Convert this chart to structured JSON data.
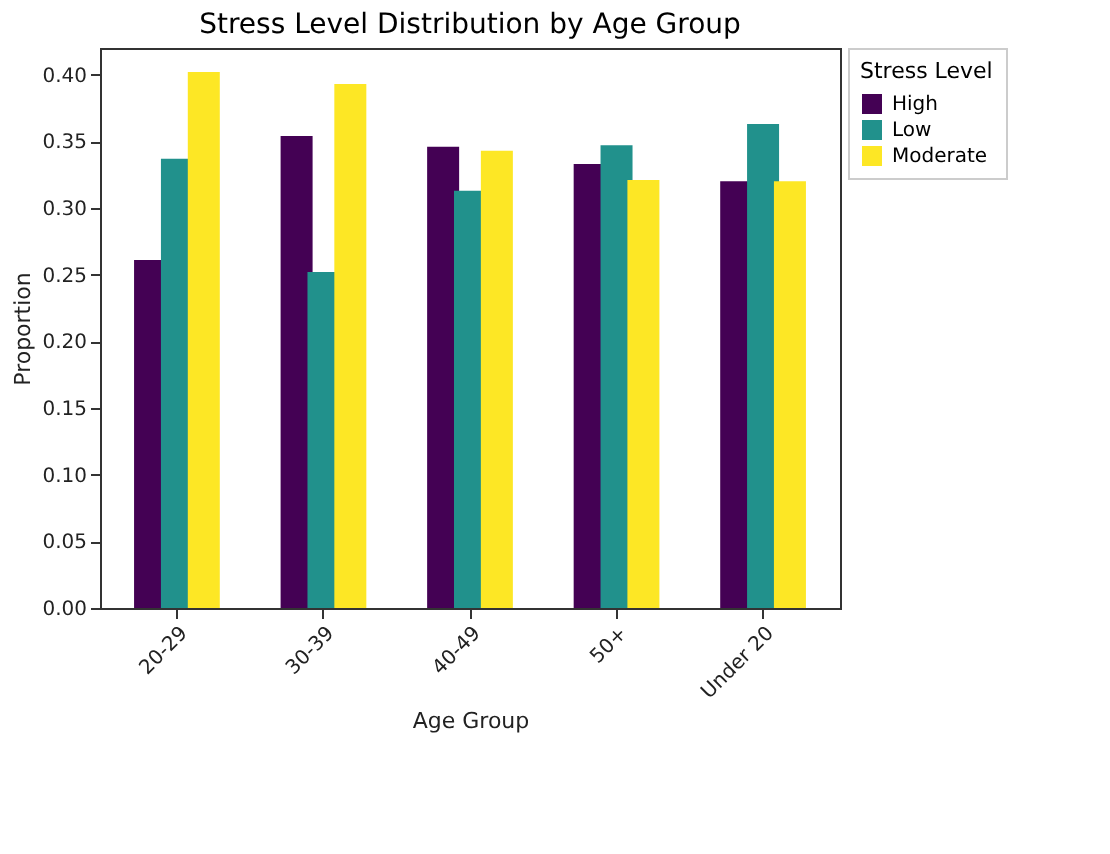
{
  "chart_data": {
    "type": "bar",
    "title": "Stress Level Distribution by Age Group",
    "xlabel": "Age Group",
    "ylabel": "Proportion",
    "legend_title": "Stress Level",
    "categories": [
      "20-29",
      "30-39",
      "40-49",
      "50+",
      "Under 20"
    ],
    "series": [
      {
        "name": "High",
        "color": "#440154",
        "values": [
          0.261,
          0.354,
          0.346,
          0.333,
          0.32
        ]
      },
      {
        "name": "Low",
        "color": "#21918c",
        "values": [
          0.337,
          0.252,
          0.313,
          0.347,
          0.363
        ]
      },
      {
        "name": "Moderate",
        "color": "#fde725",
        "values": [
          0.402,
          0.393,
          0.343,
          0.321,
          0.32
        ]
      }
    ],
    "ylim": [
      0,
      0.42
    ],
    "yticks": [
      {
        "value": 0,
        "label": "0.00"
      },
      {
        "value": 0.05,
        "label": "0.05"
      },
      {
        "value": 0.1,
        "label": "0.10"
      },
      {
        "value": 0.15,
        "label": "0.15"
      },
      {
        "value": 0.2,
        "label": "0.20"
      },
      {
        "value": 0.25,
        "label": "0.25"
      },
      {
        "value": 0.3,
        "label": "0.30"
      },
      {
        "value": 0.35,
        "label": "0.35"
      },
      {
        "value": 0.4,
        "label": "0.40"
      }
    ],
    "legend": "right",
    "grid": false
  }
}
